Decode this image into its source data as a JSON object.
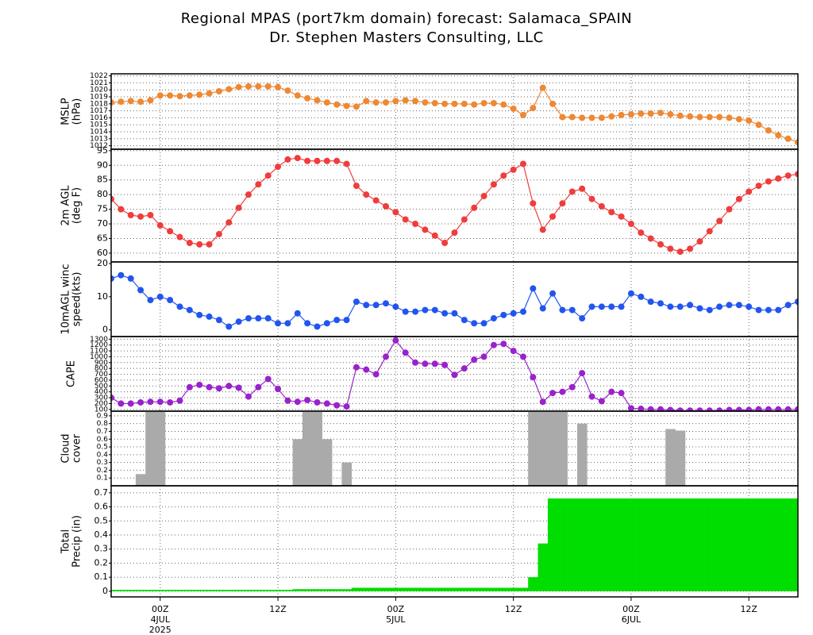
{
  "title": "Regional MPAS (port7km domain) forecast: Salamaca_SPAIN",
  "subtitle": "Dr. Stephen Masters Consulting, LLC",
  "time_axis": {
    "xlim": [
      -5,
      65
    ],
    "xticks": [
      {
        "value": 0,
        "label": "00Z"
      },
      {
        "value": 12,
        "label": "12Z"
      },
      {
        "value": 24,
        "label": "00Z"
      },
      {
        "value": 36,
        "label": "12Z"
      },
      {
        "value": 48,
        "label": "00Z"
      },
      {
        "value": 60,
        "label": "12Z"
      }
    ],
    "dates": [
      {
        "value": 0,
        "label": "4JUL"
      },
      {
        "value": 24,
        "label": "5JUL"
      },
      {
        "value": 48,
        "label": "6JUL"
      }
    ],
    "year": {
      "value": 0,
      "label": "2025"
    }
  },
  "chart_data": [
    {
      "type": "line",
      "ylabel": [
        "MSLP",
        "(hPa)"
      ],
      "color": "#ee8833",
      "ylim": [
        1011.5,
        1022.3
      ],
      "yticks": [
        1012,
        1013,
        1014,
        1015,
        1016,
        1017,
        1018,
        1019,
        1020,
        1021,
        1022
      ],
      "grid": true,
      "x": [
        -5,
        -4,
        -3,
        -2,
        -1,
        0,
        1,
        2,
        3,
        4,
        5,
        6,
        7,
        8,
        9,
        10,
        11,
        12,
        13,
        14,
        15,
        16,
        17,
        18,
        19,
        20,
        21,
        22,
        23,
        24,
        25,
        26,
        27,
        28,
        29,
        30,
        31,
        32,
        33,
        34,
        35,
        36,
        37,
        38,
        39,
        40,
        41,
        42,
        43,
        44,
        45,
        46,
        47,
        48,
        49,
        50,
        51,
        52,
        53,
        54,
        55,
        56,
        57,
        58,
        59,
        60,
        61,
        62,
        63,
        64,
        65
      ],
      "values": [
        1018.2,
        1018.3,
        1018.4,
        1018.3,
        1018.5,
        1019.2,
        1019.2,
        1019.1,
        1019.2,
        1019.3,
        1019.5,
        1019.8,
        1020.1,
        1020.4,
        1020.5,
        1020.5,
        1020.5,
        1020.4,
        1019.9,
        1019.2,
        1018.8,
        1018.5,
        1018.2,
        1017.9,
        1017.7,
        1017.6,
        1018.4,
        1018.2,
        1018.2,
        1018.4,
        1018.5,
        1018.4,
        1018.2,
        1018.1,
        1018.0,
        1018.0,
        1018.0,
        1017.9,
        1018.1,
        1018.1,
        1017.9,
        1017.3,
        1016.4,
        1017.4,
        1020.3,
        1018.0,
        1016.1,
        1016.1,
        1016.0,
        1016.0,
        1016.0,
        1016.2,
        1016.4,
        1016.5,
        1016.6,
        1016.6,
        1016.7,
        1016.5,
        1016.3,
        1016.2,
        1016.1,
        1016.1,
        1016.1,
        1016.0,
        1015.8,
        1015.6,
        1015.0,
        1014.2,
        1013.5,
        1013.0,
        1012.5
      ]
    },
    {
      "type": "line",
      "ylabel": [
        "2m AGL",
        "(deg F)"
      ],
      "color": "#f03c3c",
      "ylim": [
        57,
        95.5
      ],
      "yticks": [
        60,
        65,
        70,
        75,
        80,
        85,
        90,
        95
      ],
      "grid": true,
      "x": [
        -5,
        -4,
        -3,
        -2,
        -1,
        0,
        1,
        2,
        3,
        4,
        5,
        6,
        7,
        8,
        9,
        10,
        11,
        12,
        13,
        14,
        15,
        16,
        17,
        18,
        19,
        20,
        21,
        22,
        23,
        24,
        25,
        26,
        27,
        28,
        29,
        30,
        31,
        32,
        33,
        34,
        35,
        36,
        37,
        38,
        39,
        40,
        41,
        42,
        43,
        44,
        45,
        46,
        47,
        48,
        49,
        50,
        51,
        52,
        53,
        54,
        55,
        56,
        57,
        58,
        59,
        60,
        61,
        62,
        63,
        64,
        65
      ],
      "values": [
        78.5,
        75,
        73,
        72.5,
        73,
        69.5,
        67.5,
        65.5,
        63.5,
        63,
        63,
        66.5,
        70.5,
        75.5,
        80,
        83.5,
        86.5,
        89.5,
        92,
        92.5,
        91.5,
        91.5,
        91.5,
        91.5,
        90.5,
        83,
        80,
        78,
        76,
        74,
        71.5,
        70,
        68,
        66,
        63.5,
        67,
        71.5,
        75.5,
        79.5,
        83.5,
        86.5,
        88.5,
        90.5,
        77,
        68,
        72.5,
        77,
        81,
        82,
        78.5,
        76,
        74,
        72.5,
        70,
        67,
        65,
        63,
        61.5,
        60.5,
        61.5,
        64,
        67.5,
        71,
        75,
        78.5,
        81,
        83,
        84.5,
        85.5,
        86.5,
        87
      ]
    },
    {
      "type": "line",
      "ylabel": [
        "10mAGL winc",
        "speed(kts)"
      ],
      "color": "#2255ee",
      "ylim": [
        -2,
        20.5
      ],
      "yticks": [
        0,
        10,
        20
      ],
      "grid": false,
      "x": [
        -5,
        -4,
        -3,
        -2,
        -1,
        0,
        1,
        2,
        3,
        4,
        5,
        6,
        7,
        8,
        9,
        10,
        11,
        12,
        13,
        14,
        15,
        16,
        17,
        18,
        19,
        20,
        21,
        22,
        23,
        24,
        25,
        26,
        27,
        28,
        29,
        30,
        31,
        32,
        33,
        34,
        35,
        36,
        37,
        38,
        39,
        40,
        41,
        42,
        43,
        44,
        45,
        46,
        47,
        48,
        49,
        50,
        51,
        52,
        53,
        54,
        55,
        56,
        57,
        58,
        59,
        60,
        61,
        62,
        63,
        64,
        65
      ],
      "values": [
        15.5,
        16.5,
        15.5,
        12,
        9,
        10,
        9,
        7,
        6,
        4.5,
        4,
        3,
        1,
        2.5,
        3.5,
        3.5,
        3.5,
        2,
        2,
        5,
        2,
        1,
        2,
        3,
        3,
        8.5,
        7.5,
        7.5,
        8,
        7,
        5.5,
        5.5,
        6,
        6,
        5,
        5,
        3,
        2,
        2,
        3.5,
        4.5,
        5,
        5.5,
        12.5,
        6.5,
        11,
        6,
        6,
        3.5,
        7,
        7,
        7,
        7,
        11,
        10,
        8.5,
        8,
        7,
        7,
        7.5,
        6.5,
        6,
        7,
        7.5,
        7.5,
        7,
        6,
        6,
        6,
        7.5,
        8.5
      ]
    },
    {
      "type": "line",
      "ylabel": [
        "CAPE"
      ],
      "color": "#9922cc",
      "ylim": [
        70,
        1345
      ],
      "yticks": [
        100,
        200,
        300,
        400,
        500,
        600,
        700,
        800,
        900,
        1000,
        1100,
        1200,
        1300
      ],
      "grid": true,
      "x": [
        -5,
        -4,
        -3,
        -2,
        -1,
        0,
        1,
        2,
        3,
        4,
        5,
        6,
        7,
        8,
        9,
        10,
        11,
        12,
        13,
        14,
        15,
        16,
        17,
        18,
        19,
        20,
        21,
        22,
        23,
        24,
        25,
        26,
        27,
        28,
        29,
        30,
        31,
        32,
        33,
        34,
        35,
        36,
        37,
        38,
        39,
        40,
        41,
        42,
        43,
        44,
        45,
        46,
        47,
        48,
        49,
        50,
        51,
        52,
        53,
        54,
        55,
        56,
        57,
        58,
        59,
        60,
        61,
        62,
        63,
        64,
        65
      ],
      "values": [
        300,
        200,
        200,
        220,
        230,
        230,
        220,
        250,
        480,
        520,
        480,
        460,
        500,
        470,
        320,
        480,
        620,
        450,
        250,
        230,
        260,
        220,
        200,
        170,
        150,
        820,
        780,
        700,
        1000,
        1280,
        1070,
        900,
        880,
        880,
        860,
        690,
        800,
        950,
        1000,
        1200,
        1220,
        1100,
        1000,
        650,
        230,
        380,
        400,
        480,
        720,
        320,
        240,
        400,
        380,
        120,
        110,
        100,
        100,
        90,
        80,
        80,
        80,
        80,
        80,
        90,
        90,
        90,
        100,
        100,
        100,
        100,
        100
      ]
    },
    {
      "type": "bar",
      "ylabel": [
        "Cloud",
        "cover"
      ],
      "color": "#aaaaaa",
      "ylim": [
        0,
        0.96
      ],
      "yticks": [
        0.1,
        0.2,
        0.3,
        0.4,
        0.5,
        0.6,
        0.7,
        0.8,
        0.9
      ],
      "grid": true,
      "x": [
        -5,
        -4,
        -3,
        -2,
        -1,
        0,
        1,
        2,
        3,
        4,
        5,
        6,
        7,
        8,
        9,
        10,
        11,
        12,
        13,
        14,
        15,
        16,
        17,
        18,
        19,
        20,
        21,
        22,
        23,
        24,
        25,
        26,
        27,
        28,
        29,
        30,
        31,
        32,
        33,
        34,
        35,
        36,
        37,
        38,
        39,
        40,
        41,
        42,
        43,
        44,
        45,
        46,
        47,
        48,
        49,
        50,
        51,
        52,
        53,
        54,
        55,
        56,
        57,
        58,
        59,
        60,
        61,
        62,
        63,
        64,
        65
      ],
      "values": [
        0,
        0,
        0,
        0.15,
        1,
        1,
        0,
        0,
        0,
        0,
        0,
        0,
        0,
        0,
        0,
        0,
        0,
        0,
        0,
        0.6,
        1,
        1,
        0.6,
        0,
        0.3,
        0,
        0,
        0,
        0,
        0,
        0,
        0,
        0,
        0,
        0,
        0,
        0,
        0,
        0,
        0,
        0,
        0,
        0,
        1,
        1,
        1,
        1,
        0,
        0.8,
        0,
        0,
        0,
        0,
        0,
        0,
        0,
        0,
        0.73,
        0.71,
        0,
        0,
        0,
        0,
        0,
        0,
        0,
        0,
        0,
        0,
        0,
        0
      ]
    },
    {
      "type": "bar",
      "ylabel": [
        "Total",
        "Precip (in)"
      ],
      "color": "#00dd00",
      "ylim": [
        -0.04,
        0.75
      ],
      "yticks": [
        0,
        0.1,
        0.2,
        0.3,
        0.4,
        0.5,
        0.6,
        0.7
      ],
      "grid": true,
      "x": [
        -5,
        -4,
        -3,
        -2,
        -1,
        0,
        1,
        2,
        3,
        4,
        5,
        6,
        7,
        8,
        9,
        10,
        11,
        12,
        13,
        14,
        15,
        16,
        17,
        18,
        19,
        20,
        21,
        22,
        23,
        24,
        25,
        26,
        27,
        28,
        29,
        30,
        31,
        32,
        33,
        34,
        35,
        36,
        37,
        38,
        39,
        40,
        41,
        42,
        43,
        44,
        45,
        46,
        47,
        48,
        49,
        50,
        51,
        52,
        53,
        54,
        55,
        56,
        57,
        58,
        59,
        60,
        61,
        62,
        63,
        64,
        65
      ],
      "values": [
        0.01,
        0.01,
        0.01,
        0.01,
        0.01,
        0.01,
        0.01,
        0.01,
        0.01,
        0.01,
        0.01,
        0.01,
        0.01,
        0.01,
        0.01,
        0.01,
        0.01,
        0.01,
        0.01,
        0.015,
        0.015,
        0.015,
        0.015,
        0.015,
        0.015,
        0.025,
        0.025,
        0.025,
        0.025,
        0.025,
        0.025,
        0.025,
        0.025,
        0.025,
        0.025,
        0.025,
        0.025,
        0.025,
        0.025,
        0.025,
        0.025,
        0.025,
        0.025,
        0.1,
        0.34,
        0.66,
        0.66,
        0.66,
        0.66,
        0.66,
        0.66,
        0.66,
        0.66,
        0.66,
        0.66,
        0.66,
        0.66,
        0.66,
        0.66,
        0.66,
        0.66,
        0.66,
        0.66,
        0.66,
        0.66,
        0.66,
        0.66,
        0.66,
        0.66,
        0.66,
        0.66
      ]
    }
  ]
}
